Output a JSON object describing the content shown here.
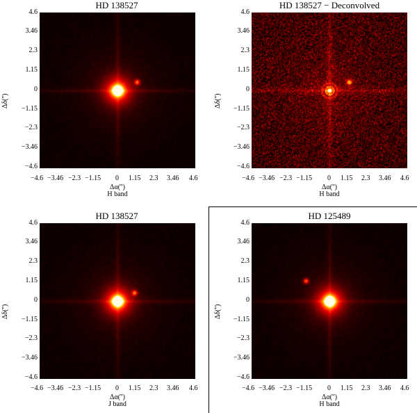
{
  "panels": [
    {
      "title": "HD 138527",
      "band": "H band",
      "ylabel": "Δδ('')",
      "xlabel": "Δα('')",
      "yticks": [
        "4.6",
        "3.46",
        "2.3",
        "1.15",
        "0",
        "−1.15",
        "−2.3",
        "−3.46",
        "−4.6"
      ],
      "xticks": [
        "−4.6",
        "−3.46",
        "−2.3",
        "−1.15",
        "0",
        "1.15",
        "2.3",
        "3.46",
        "4.6"
      ],
      "image": {
        "type": "psf",
        "companion": [
          1.15,
          0.5
        ],
        "noise": 0.05
      }
    },
    {
      "title": "HD 138527 − Deconvolved",
      "band": "H band",
      "ylabel": "Δδ('')",
      "xlabel": "Δα('')",
      "yticks": [
        "4.6",
        "3.46",
        "2.3",
        "1.15",
        "0",
        "−1.15",
        "−2.3",
        "−3.46",
        "−4.6"
      ],
      "xticks": [
        "−4.6",
        "−3.46",
        "−2.3",
        "−1.15",
        "0",
        "1.15",
        "2.3",
        "3.46",
        "4.6"
      ],
      "image": {
        "type": "deconv",
        "companion": [
          1.15,
          0.5
        ],
        "noise": 0.35
      }
    },
    {
      "title": "HD 138527",
      "band": "J band",
      "ylabel": "Δδ('')",
      "xlabel": "Δα('')",
      "yticks": [
        "4.6",
        "3.46",
        "2.3",
        "1.15",
        "0",
        "−1.15",
        "−2.3",
        "−3.46",
        "−4.6"
      ],
      "xticks": [
        "−4.6",
        "−3.46",
        "−2.3",
        "−1.15",
        "0",
        "1.15",
        "2.3",
        "3.46",
        "4.6"
      ],
      "image": {
        "type": "psf",
        "companion": [
          1.0,
          0.5
        ],
        "noise": 0.05
      }
    },
    {
      "title": "HD 125489",
      "band": "H band",
      "ylabel": "Δδ('')",
      "xlabel": "Δα('')",
      "yticks": [
        "4.6",
        "3.46",
        "2.3",
        "1.15",
        "0",
        "−1.15",
        "−2.3",
        "−3.46",
        "−4.6"
      ],
      "xticks": [
        "−4.6",
        "−3.46",
        "−2.3",
        "−1.15",
        "0",
        "1.15",
        "2.3",
        "3.46",
        "4.6"
      ],
      "image": {
        "type": "psf",
        "companion": [
          -1.4,
          1.2
        ],
        "noise": 0.05
      }
    }
  ],
  "colors": {
    "cmap": "red-temperature",
    "frame": "#000000"
  }
}
